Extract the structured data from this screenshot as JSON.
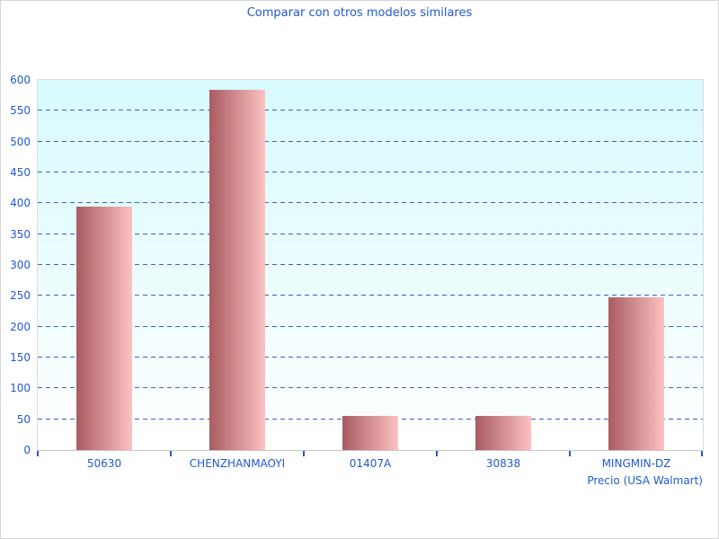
{
  "chart_data": {
    "type": "bar",
    "title": "Comparar con otros modelos similares",
    "categories": [
      "50630",
      "CHENZHANMAOYI",
      "01407A",
      "30838",
      "MINGMIN-DZ"
    ],
    "values": [
      394,
      584,
      56,
      55,
      248
    ],
    "xlabel": "Precio (USA Walmart)",
    "ylabel": "",
    "ylim": [
      0,
      600
    ],
    "yticks": [
      0,
      50,
      100,
      150,
      200,
      250,
      300,
      350,
      400,
      450,
      500,
      550,
      600
    ],
    "grid": "horizontal dashed lines at every 50, none at 0 or 600",
    "legend": "none",
    "colors": {
      "text_blue": "#2158cf",
      "gridline_blue": "#3e5ecf",
      "bar_gradient_left": "#a95b62",
      "bar_gradient_right": "#fcc2c2",
      "plot_background_top": "#d7fafe",
      "plot_background_bottom": "#ffffff",
      "axis_line": "#c8c8c8",
      "frame_border": "#d6d6d6",
      "plot_border": "#dcdcdc"
    }
  }
}
